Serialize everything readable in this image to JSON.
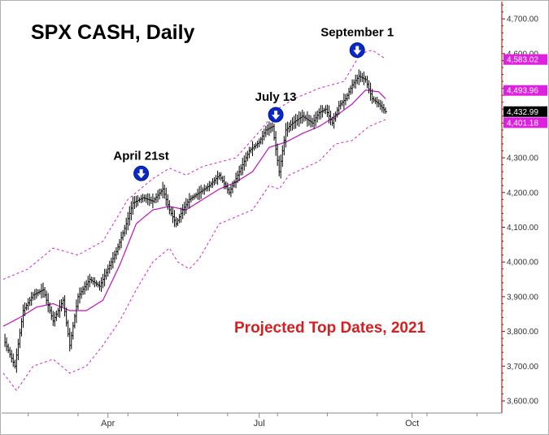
{
  "chart_data": {
    "type": "ohlc",
    "title": "SPX CASH, Daily",
    "annotation": "Projected Top Dates, 2021",
    "y_ticks": [
      3600,
      3700,
      3800,
      3900,
      4000,
      4100,
      4200,
      4300,
      4400,
      4500,
      4600,
      4700
    ],
    "y_tick_labels": [
      "3,600.00",
      "3,700.00",
      "3,800.00",
      "3,900.00",
      "4,000.00",
      "4,100.00",
      "4,200.00",
      "4,300.00",
      "4,400.00",
      "4,500.00",
      "4,600.00",
      "4,700.00"
    ],
    "ylim": [
      3565,
      4745
    ],
    "x_ticks": [
      {
        "label": "Apr",
        "day": 63
      },
      {
        "label": "Jul",
        "day": 154
      },
      {
        "label": "Oct",
        "day": 246
      }
    ],
    "xlim": [
      0,
      300
    ],
    "price_tags": [
      {
        "label": "4,583.02",
        "value": 4583.02,
        "color": "#e020e0"
      },
      {
        "label": "4,493.96",
        "value": 4493.96,
        "color": "#e020e0"
      },
      {
        "label": "4,432.99",
        "value": 4432.99,
        "color": "#000000"
      },
      {
        "label": "4,401.18",
        "value": 4401.18,
        "color": "#e020e0"
      }
    ],
    "top_markers": [
      {
        "label": "April 21st",
        "day": 83,
        "value": 4255
      },
      {
        "label": "July 13",
        "day": 164,
        "value": 4424
      },
      {
        "label": "September 1",
        "day": 213,
        "value": 4610
      }
    ],
    "close_path": [
      [
        0,
        3780
      ],
      [
        7,
        3700
      ],
      [
        12,
        3860
      ],
      [
        18,
        3905
      ],
      [
        24,
        3920
      ],
      [
        30,
        3830
      ],
      [
        36,
        3890
      ],
      [
        40,
        3760
      ],
      [
        45,
        3900
      ],
      [
        52,
        3950
      ],
      [
        58,
        3930
      ],
      [
        62,
        3970
      ],
      [
        68,
        4030
      ],
      [
        74,
        4110
      ],
      [
        78,
        4170
      ],
      [
        84,
        4185
      ],
      [
        90,
        4175
      ],
      [
        96,
        4210
      ],
      [
        100,
        4150
      ],
      [
        104,
        4110
      ],
      [
        108,
        4150
      ],
      [
        112,
        4180
      ],
      [
        118,
        4200
      ],
      [
        124,
        4220
      ],
      [
        130,
        4250
      ],
      [
        136,
        4200
      ],
      [
        142,
        4260
      ],
      [
        148,
        4320
      ],
      [
        154,
        4345
      ],
      [
        158,
        4380
      ],
      [
        162,
        4390
      ],
      [
        166,
        4260
      ],
      [
        170,
        4380
      ],
      [
        174,
        4400
      ],
      [
        180,
        4420
      ],
      [
        186,
        4400
      ],
      [
        190,
        4430
      ],
      [
        194,
        4440
      ],
      [
        198,
        4400
      ],
      [
        202,
        4450
      ],
      [
        206,
        4470
      ],
      [
        210,
        4510
      ],
      [
        214,
        4535
      ],
      [
        218,
        4525
      ],
      [
        222,
        4470
      ],
      [
        226,
        4455
      ],
      [
        230,
        4433
      ]
    ],
    "ma_path": [
      [
        0,
        3815
      ],
      [
        10,
        3840
      ],
      [
        20,
        3870
      ],
      [
        30,
        3880
      ],
      [
        40,
        3860
      ],
      [
        50,
        3860
      ],
      [
        60,
        3890
      ],
      [
        70,
        3990
      ],
      [
        80,
        4110
      ],
      [
        90,
        4150
      ],
      [
        100,
        4160
      ],
      [
        110,
        4150
      ],
      [
        120,
        4180
      ],
      [
        130,
        4210
      ],
      [
        140,
        4230
      ],
      [
        150,
        4260
      ],
      [
        160,
        4330
      ],
      [
        170,
        4345
      ],
      [
        180,
        4370
      ],
      [
        190,
        4390
      ],
      [
        200,
        4420
      ],
      [
        210,
        4455
      ],
      [
        218,
        4495
      ],
      [
        226,
        4490
      ],
      [
        230,
        4470
      ]
    ],
    "upper_band_path": [
      [
        0,
        3950
      ],
      [
        15,
        3980
      ],
      [
        30,
        4040
      ],
      [
        45,
        4020
      ],
      [
        60,
        4060
      ],
      [
        75,
        4180
      ],
      [
        90,
        4240
      ],
      [
        100,
        4270
      ],
      [
        110,
        4250
      ],
      [
        120,
        4275
      ],
      [
        140,
        4300
      ],
      [
        155,
        4380
      ],
      [
        165,
        4440
      ],
      [
        175,
        4470
      ],
      [
        190,
        4500
      ],
      [
        205,
        4520
      ],
      [
        215,
        4600
      ],
      [
        222,
        4610
      ],
      [
        230,
        4585
      ]
    ],
    "lower_band_path": [
      [
        0,
        3680
      ],
      [
        8,
        3630
      ],
      [
        18,
        3700
      ],
      [
        30,
        3720
      ],
      [
        40,
        3680
      ],
      [
        50,
        3700
      ],
      [
        60,
        3760
      ],
      [
        70,
        3830
      ],
      [
        80,
        3920
      ],
      [
        90,
        4000
      ],
      [
        100,
        4040
      ],
      [
        105,
        4000
      ],
      [
        112,
        3980
      ],
      [
        118,
        4010
      ],
      [
        130,
        4110
      ],
      [
        150,
        4150
      ],
      [
        160,
        4220
      ],
      [
        166,
        4210
      ],
      [
        172,
        4250
      ],
      [
        190,
        4290
      ],
      [
        200,
        4340
      ],
      [
        210,
        4350
      ],
      [
        220,
        4390
      ],
      [
        230,
        4410
      ]
    ]
  }
}
